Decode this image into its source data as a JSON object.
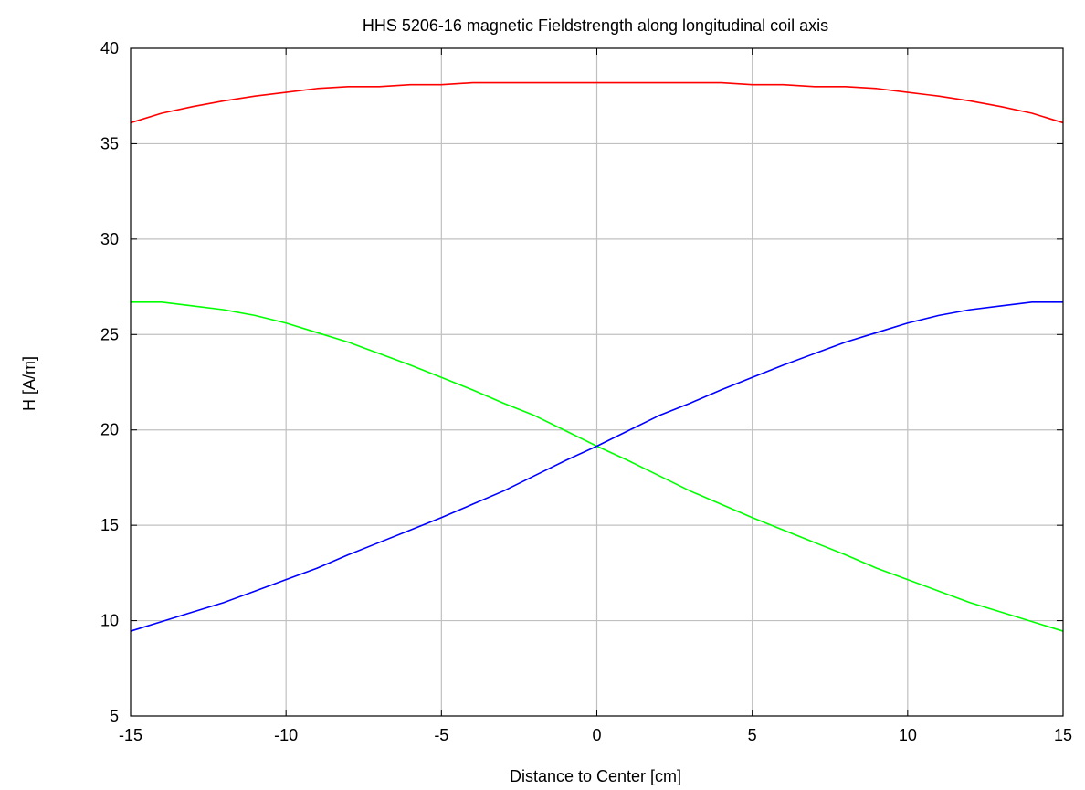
{
  "chart_data": {
    "type": "line",
    "title": "HHS 5206-16 magnetic Fieldstrength along longitudinal coil axis",
    "xlabel": "Distance to Center [cm]",
    "ylabel": "H [A/m]",
    "xlim": [
      -15,
      15
    ],
    "ylim": [
      5,
      40
    ],
    "xticks": [
      -15,
      -10,
      -5,
      0,
      5,
      10,
      15
    ],
    "yticks": [
      5,
      10,
      15,
      20,
      25,
      30,
      35,
      40
    ],
    "x_tick_labels": [
      "-15",
      "-10",
      "-5",
      "0",
      "5",
      "10",
      "15"
    ],
    "y_tick_labels": [
      "5",
      "10",
      "15",
      "20",
      "25",
      "30",
      "35",
      "40"
    ],
    "grid": true,
    "legend": "none",
    "x": [
      -15,
      -14,
      -13,
      -12,
      -11,
      -10,
      -9,
      -8,
      -7,
      -6,
      -5,
      -4,
      -3,
      -2,
      -1,
      0,
      1,
      2,
      3,
      4,
      5,
      6,
      7,
      8,
      9,
      10,
      11,
      12,
      13,
      14,
      15
    ],
    "series": [
      {
        "color": "#ff0000",
        "values": [
          36.1,
          36.6,
          36.95,
          37.25,
          37.5,
          37.7,
          37.9,
          38.0,
          38.0,
          38.1,
          38.1,
          38.2,
          38.2,
          38.2,
          38.2,
          38.2,
          38.2,
          38.2,
          38.2,
          38.2,
          38.1,
          38.1,
          38.0,
          38.0,
          37.9,
          37.7,
          37.5,
          37.25,
          36.95,
          36.6,
          36.1
        ]
      },
      {
        "color": "#00ff00",
        "values": [
          26.7,
          26.7,
          26.5,
          26.3,
          26.0,
          25.6,
          25.1,
          24.6,
          24.0,
          23.4,
          22.75,
          22.1,
          21.4,
          20.75,
          19.95,
          19.15,
          18.4,
          17.6,
          16.8,
          16.1,
          15.4,
          14.75,
          14.1,
          13.45,
          12.75,
          12.15,
          11.55,
          10.95,
          10.45,
          9.95,
          9.45
        ]
      },
      {
        "color": "#0000ff",
        "values": [
          9.45,
          9.95,
          10.45,
          10.95,
          11.55,
          12.15,
          12.75,
          13.45,
          14.1,
          14.75,
          15.4,
          16.1,
          16.8,
          17.6,
          18.4,
          19.15,
          19.95,
          20.75,
          21.4,
          22.1,
          22.75,
          23.4,
          24.0,
          24.6,
          25.1,
          25.6,
          26.0,
          26.3,
          26.5,
          26.7,
          26.7
        ]
      }
    ],
    "colors": {
      "grid": "#c0c0c0",
      "frame": "#000000",
      "background": "#ffffff"
    }
  }
}
